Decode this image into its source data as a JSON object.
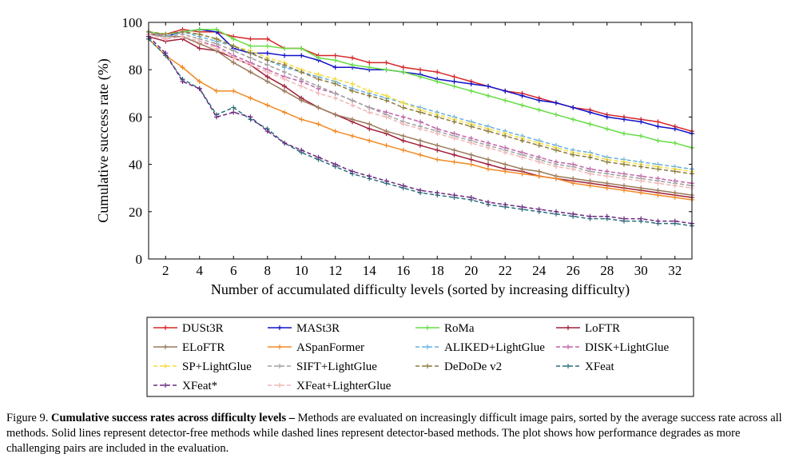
{
  "chart_data": {
    "type": "line",
    "xlabel": "Number of accumulated difficulty levels (sorted by increasing difficulty)",
    "ylabel": "Cumulative success rate (%)",
    "xlim": [
      1,
      33
    ],
    "ylim": [
      0,
      100
    ],
    "xticks": [
      2,
      4,
      6,
      8,
      10,
      12,
      14,
      16,
      18,
      20,
      22,
      24,
      26,
      28,
      30,
      32
    ],
    "yticks": [
      0,
      20,
      40,
      60,
      80,
      100
    ],
    "grid": false,
    "legend_position": "bottom",
    "x": [
      1,
      2,
      3,
      4,
      5,
      6,
      7,
      8,
      9,
      10,
      11,
      12,
      13,
      14,
      15,
      16,
      17,
      18,
      19,
      20,
      21,
      22,
      23,
      24,
      25,
      26,
      27,
      28,
      29,
      30,
      31,
      32,
      33
    ],
    "series": [
      {
        "name": "DUSt3R",
        "color": "#d62728",
        "style": "solid",
        "values": [
          95,
          95,
          97,
          96,
          96,
          94,
          93,
          93,
          89,
          89,
          86,
          86,
          85,
          83,
          83,
          81,
          80,
          79,
          77,
          75,
          73,
          71,
          70,
          68,
          66,
          64,
          63,
          61,
          60,
          59,
          58,
          56,
          54
        ]
      },
      {
        "name": "MASt3R",
        "color": "#1010c8",
        "style": "solid",
        "values": [
          95,
          94,
          96,
          97,
          96,
          89,
          87,
          87,
          86,
          86,
          84,
          81,
          81,
          80,
          80,
          79,
          78,
          76,
          75,
          74,
          73,
          71,
          69,
          67,
          66,
          64,
          62,
          60,
          59,
          58,
          56,
          55,
          53
        ]
      },
      {
        "name": "RoMa",
        "color": "#66dd44",
        "style": "solid",
        "values": [
          96,
          95,
          96,
          97,
          97,
          93,
          90,
          90,
          89,
          89,
          85,
          84,
          82,
          81,
          80,
          79,
          77,
          75,
          73,
          71,
          69,
          67,
          65,
          63,
          61,
          59,
          57,
          55,
          53,
          52,
          50,
          49,
          47
        ]
      },
      {
        "name": "LoFTR",
        "color": "#a0203a",
        "style": "solid",
        "values": [
          94,
          92,
          93,
          89,
          88,
          85,
          82,
          77,
          73,
          68,
          64,
          61,
          58,
          55,
          53,
          50,
          48,
          46,
          44,
          42,
          40,
          38,
          37,
          35,
          34,
          33,
          32,
          31,
          30,
          29,
          28,
          27,
          26
        ]
      },
      {
        "name": "ELoFTR",
        "color": "#9a7b5a",
        "style": "solid",
        "values": [
          95,
          94,
          94,
          91,
          88,
          83,
          79,
          75,
          71,
          67,
          64,
          61,
          59,
          57,
          54,
          52,
          50,
          48,
          46,
          44,
          42,
          40,
          38,
          37,
          35,
          34,
          33,
          32,
          31,
          30,
          29,
          28,
          27
        ]
      },
      {
        "name": "ASpanFormer",
        "color": "#f08a24",
        "style": "solid",
        "values": [
          93,
          86,
          81,
          75,
          71,
          71,
          68,
          65,
          62,
          59,
          57,
          54,
          52,
          50,
          48,
          46,
          44,
          42,
          41,
          40,
          38,
          37,
          36,
          35,
          34,
          32,
          31,
          30,
          29,
          28,
          27,
          26,
          25
        ]
      },
      {
        "name": "ALIKED+LightGlue",
        "color": "#66aee0",
        "style": "dashed",
        "values": [
          96,
          94,
          96,
          94,
          92,
          90,
          87,
          84,
          81,
          79,
          77,
          75,
          72,
          70,
          68,
          66,
          64,
          62,
          60,
          58,
          56,
          54,
          52,
          50,
          48,
          46,
          45,
          43,
          42,
          41,
          40,
          39,
          38
        ]
      },
      {
        "name": "DISK+LightGlue",
        "color": "#c060a8",
        "style": "dashed",
        "values": [
          95,
          93,
          94,
          92,
          90,
          86,
          83,
          80,
          77,
          75,
          72,
          70,
          67,
          64,
          62,
          60,
          58,
          55,
          53,
          51,
          49,
          47,
          45,
          43,
          41,
          40,
          38,
          37,
          36,
          35,
          34,
          33,
          32
        ]
      },
      {
        "name": "SP+LightGlue",
        "color": "#f3dc3c",
        "style": "dashed",
        "values": [
          96,
          95,
          96,
          95,
          93,
          90,
          88,
          85,
          83,
          80,
          78,
          76,
          74,
          71,
          69,
          66,
          63,
          61,
          59,
          57,
          55,
          53,
          51,
          49,
          47,
          45,
          44,
          42,
          41,
          40,
          39,
          38,
          37
        ]
      },
      {
        "name": "SIFT+LightGlue",
        "color": "#a0a0a0",
        "style": "dashed",
        "values": [
          95,
          94,
          95,
          93,
          91,
          88,
          85,
          82,
          79,
          76,
          73,
          70,
          67,
          64,
          61,
          58,
          56,
          54,
          52,
          50,
          48,
          46,
          44,
          42,
          40,
          39,
          37,
          36,
          35,
          34,
          33,
          32,
          31
        ]
      },
      {
        "name": "DeDoDe v2",
        "color": "#8a7a3a",
        "style": "dashed",
        "values": [
          96,
          95,
          96,
          95,
          93,
          90,
          87,
          84,
          82,
          79,
          76,
          74,
          71,
          69,
          67,
          64,
          62,
          60,
          58,
          56,
          54,
          52,
          50,
          48,
          46,
          44,
          43,
          41,
          40,
          39,
          38,
          37,
          36
        ]
      },
      {
        "name": "XFeat",
        "color": "#2a6f7a",
        "style": "dashed",
        "values": [
          93,
          86,
          76,
          72,
          61,
          64,
          59,
          55,
          49,
          45,
          42,
          39,
          36,
          34,
          32,
          30,
          28,
          27,
          26,
          25,
          23,
          22,
          21,
          20,
          19,
          18,
          17,
          17,
          16,
          16,
          15,
          15,
          14
        ]
      },
      {
        "name": "XFeat*",
        "color": "#6a2a80",
        "style": "dashed",
        "values": [
          94,
          87,
          75,
          72,
          60,
          62,
          60,
          54,
          49,
          46,
          43,
          40,
          37,
          35,
          33,
          31,
          29,
          28,
          27,
          26,
          24,
          23,
          22,
          21,
          20,
          19,
          18,
          18,
          17,
          17,
          16,
          16,
          15
        ]
      },
      {
        "name": "XFeat+LighterGlue",
        "color": "#f0b6b6",
        "style": "dashed",
        "values": [
          95,
          93,
          94,
          92,
          89,
          85,
          82,
          79,
          76,
          73,
          70,
          68,
          65,
          62,
          60,
          57,
          55,
          53,
          51,
          49,
          47,
          45,
          43,
          41,
          39,
          38,
          36,
          35,
          34,
          33,
          32,
          31,
          30
        ]
      }
    ]
  },
  "caption": {
    "label": "Figure 9.",
    "title": "Cumulative success rates across difficulty levels –",
    "body": " Methods are evaluated on increasingly difficult image pairs, sorted by the average success rate across all methods. Solid lines represent detector-free methods while dashed lines represent detector-based methods. The plot shows how performance degrades as more challenging pairs are included in the evaluation."
  }
}
